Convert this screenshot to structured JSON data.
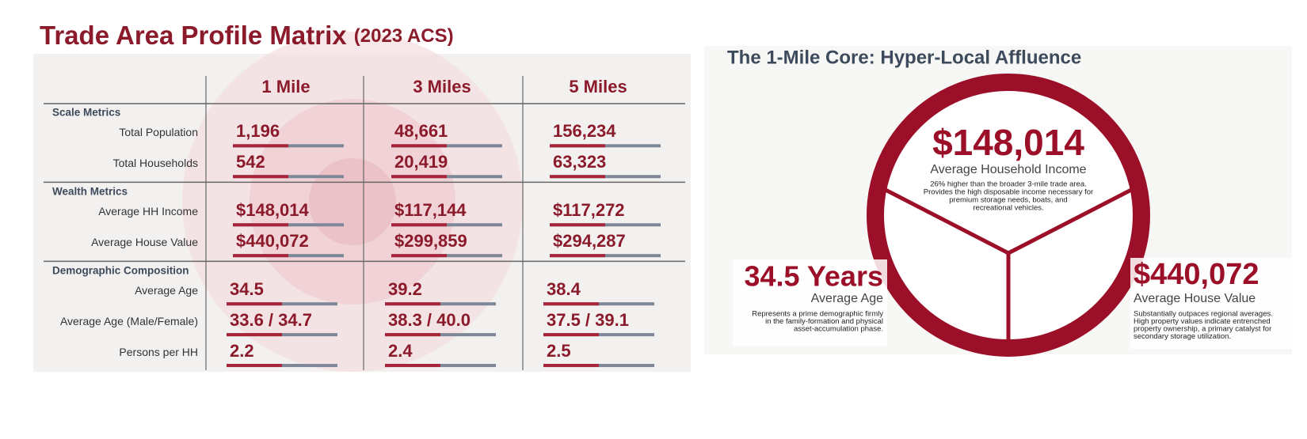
{
  "left_panel": {
    "title": "Trade Area Profile Matrix",
    "subtitle": "(2023 ACS)",
    "columns": [
      "1 Mile",
      "3 Miles",
      "5 Miles"
    ],
    "sections": [
      {
        "name": "Scale Metrics",
        "rows": [
          {
            "label": "Total Population",
            "values": [
              "1,196",
              "48,661",
              "156,234"
            ]
          },
          {
            "label": "Total Households",
            "values": [
              "542",
              "20,419",
              "63,323"
            ]
          }
        ]
      },
      {
        "name": "Wealth Metrics",
        "rows": [
          {
            "label": "Average HH Income",
            "values": [
              "$148,014",
              "$117,144",
              "$117,272"
            ]
          },
          {
            "label": "Average House Value",
            "values": [
              "$440,072",
              "$299,859",
              "$294,287"
            ]
          }
        ]
      },
      {
        "name": "Demographic Composition",
        "rows": [
          {
            "label": "Average Age",
            "values": [
              "34.5",
              "39.2",
              "38.4"
            ]
          },
          {
            "label": "Average Age (Male/Female)",
            "values": [
              "33.6 / 34.7",
              "38.3 / 40.0",
              "37.5 / 39.1"
            ]
          },
          {
            "label": "Persons per HH",
            "values": [
              "2.2",
              "2.4",
              "2.5"
            ]
          }
        ]
      }
    ]
  },
  "right_panel": {
    "title": "The 1-Mile Core: Hyper-Local Affluence",
    "center": {
      "value": "$148,014",
      "label": "Average Household Income",
      "description": [
        "26% higher than the broader 3-mile trade area.",
        "Provides the high disposable income necessary for",
        "premium storage needs, boats, and",
        "recreational vehicles."
      ]
    },
    "left": {
      "value": "34.5 Years",
      "label": "Average Age",
      "description": [
        "Represents a prime demographic firmly",
        "in the family-formation and physical",
        "asset-accumulation phase."
      ]
    },
    "right": {
      "value": "$440,072",
      "label": "Average House Value",
      "description": [
        "Substantially outpaces regional averages.",
        "High property values indicate entrenched",
        "property ownership, a primary catalyst for",
        "secondary storage utilization."
      ]
    }
  }
}
